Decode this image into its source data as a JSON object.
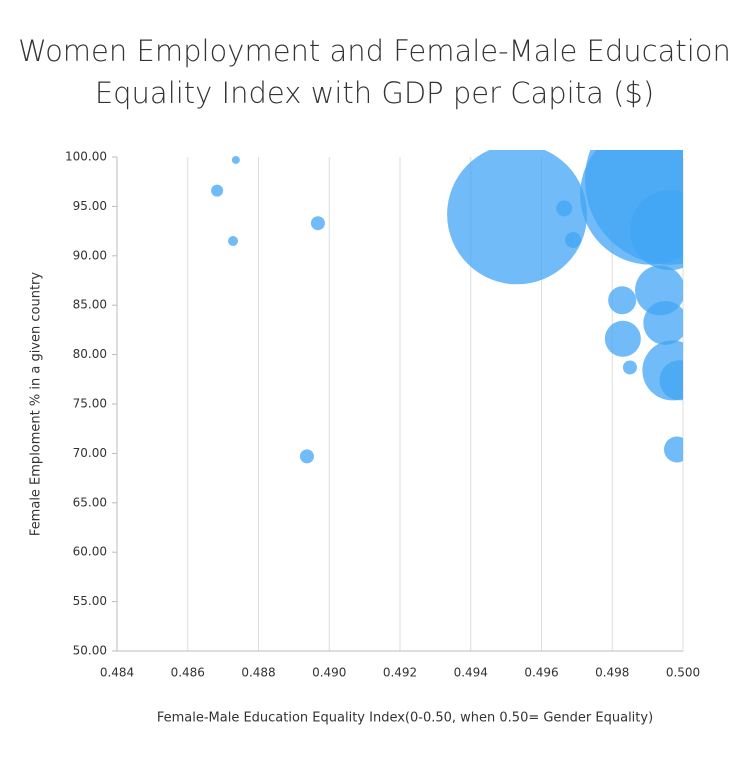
{
  "chart_data": {
    "type": "bubble",
    "title": "Women Employment and Female-Male Education Equality Index with GDP per Capita ($)",
    "x_label": "Female-Male Education Equality Index(0-0.50, when 0.50= Gender Equality)",
    "y_label": "Female  Emploment % in a given country",
    "color": "#42a5f5",
    "grid": true,
    "x": [
      0.48736,
      0.48683,
      0.48728,
      0.48968,
      0.48937,
      0.49531,
      0.49664,
      0.49689,
      0.49907,
      0.49963,
      0.49963,
      0.49828,
      0.4983,
      0.4985,
      0.49935,
      0.4995,
      0.4997,
      0.4999,
      0.49983
    ],
    "y": [
      99.7,
      96.6,
      91.5,
      93.3,
      69.7,
      94.2,
      94.8,
      91.6,
      96.2,
      97.7,
      92.6,
      85.5,
      81.6,
      78.7,
      86.5,
      83.2,
      78.4,
      77.4,
      70.4
    ],
    "sizes": [
      160,
      360,
      250,
      490,
      490,
      49000,
      640,
      640,
      49000,
      72250,
      16000,
      1960,
      3240,
      490,
      6250,
      4840,
      9000,
      4000,
      1690
    ],
    "xlim": [
      0.484,
      0.5
    ],
    "xticks": [
      0.484,
      0.486,
      0.488,
      {
        "value": 0.49,
        "label": "0.490"
      },
      0.492,
      0.494,
      0.496,
      0.498,
      {
        "value": 0.5,
        "label": "0.500"
      }
    ],
    "ylim": [
      50,
      100
    ],
    "yticks": [
      {
        "value": 50,
        "label": "50.00"
      },
      {
        "value": 55,
        "label": "55.00"
      },
      {
        "value": 60,
        "label": "60.00"
      },
      {
        "value": 65,
        "label": "65.00"
      },
      {
        "value": 70,
        "label": "70.00"
      },
      {
        "value": 75,
        "label": "75.00"
      },
      {
        "value": 80,
        "label": "80.00"
      },
      {
        "value": 85,
        "label": "85.00"
      },
      {
        "value": 90,
        "label": "90.00"
      },
      {
        "value": 95,
        "label": "95.00"
      },
      {
        "value": 100,
        "label": "100.00"
      }
    ]
  }
}
